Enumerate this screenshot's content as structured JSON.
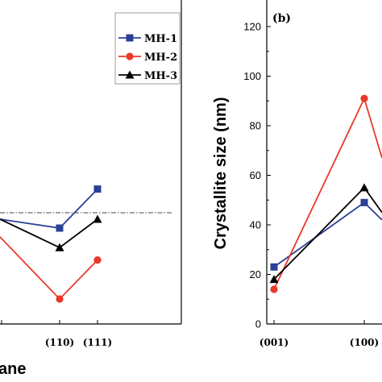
{
  "chart_data": [
    {
      "type": "line",
      "panel": "a",
      "panel_label": "",
      "categories": [
        "(110)",
        "(111)"
      ],
      "xlabel_partial": "ane",
      "legend_placement": "top-right",
      "reference_line": "dash-dot horizontal",
      "series": [
        {
          "name": "MH-1",
          "color": "#2b3f96",
          "marker": "square",
          "values": [
            -0.5,
            1.7
          ],
          "left_edge": 0.0
        },
        {
          "name": "MH-2",
          "color": "#e8392a",
          "marker": "circle",
          "values": [
            -4.5,
            -2.3
          ],
          "left_edge": -1.0
        },
        {
          "name": "MH-3",
          "color": "#000000",
          "marker": "triangle",
          "values": [
            -1.6,
            0.0
          ],
          "left_edge": 0.0
        }
      ]
    },
    {
      "type": "line",
      "panel": "b",
      "panel_label": "(b)",
      "ylabel": "Crystallite size (nm)",
      "ylim": [
        0,
        120
      ],
      "yticks": [
        "0",
        "20",
        "40",
        "60",
        "80",
        "100",
        "120"
      ],
      "categories": [
        "(001)",
        "(100)"
      ],
      "series": [
        {
          "name": "MH-1",
          "color": "#2b3f96",
          "marker": "square",
          "values": [
            23,
            49
          ]
        },
        {
          "name": "MH-2",
          "color": "#e8392a",
          "marker": "circle",
          "values": [
            14,
            91
          ]
        },
        {
          "name": "MH-3",
          "color": "#000000",
          "marker": "triangle",
          "values": [
            18,
            55
          ]
        }
      ]
    }
  ]
}
